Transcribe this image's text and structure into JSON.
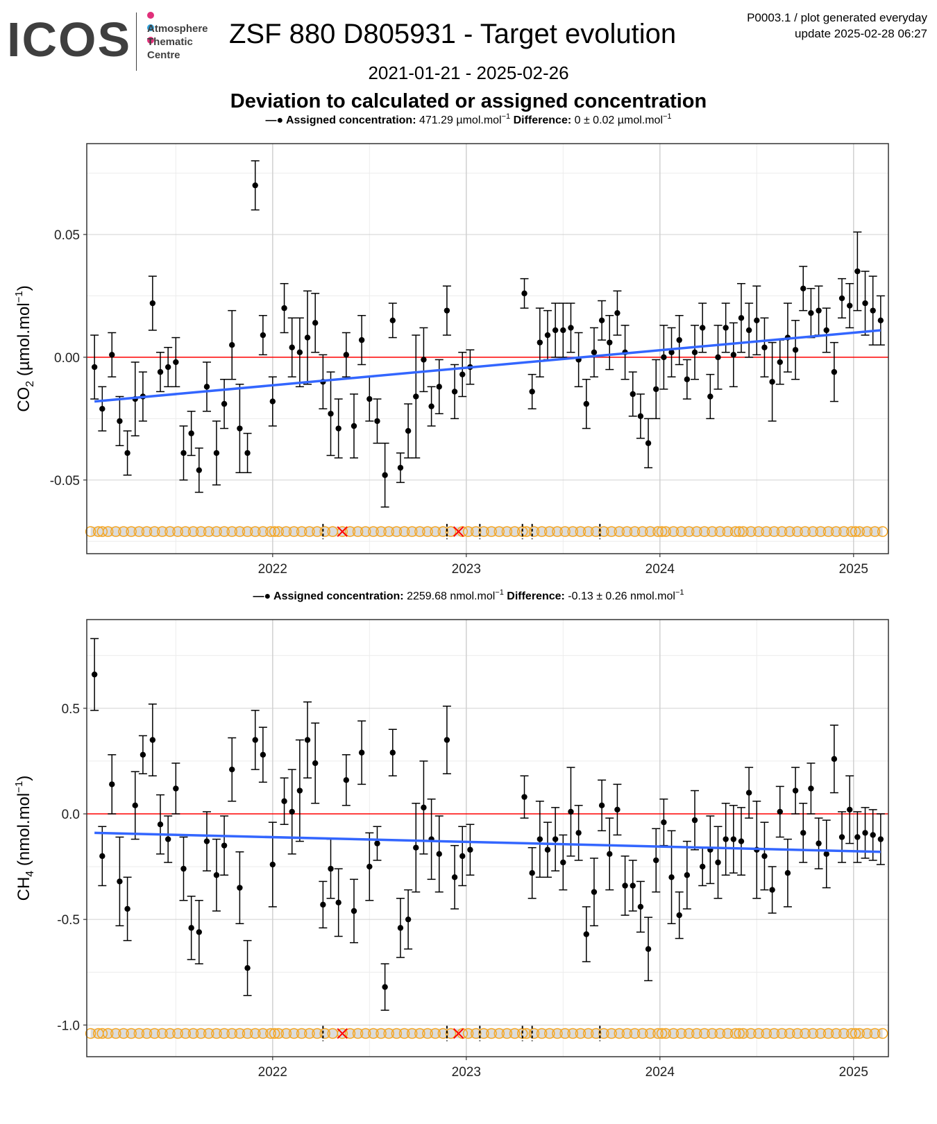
{
  "logo": {
    "wordmark": "ICOS",
    "lines": [
      "Atmosphere",
      "Thematic",
      "Centre"
    ],
    "dot_colors": [
      "#e0307a",
      "#2e9fd8",
      "#e0307a"
    ]
  },
  "header": {
    "title": "ZSF 880 D805931 - Target evolution",
    "meta_line1": "P0003.1 / plot generated everyday",
    "meta_line2": "update  2025-02-28 06:27",
    "date_range": "2021-01-21 - 2025-02-26",
    "subtitle": "Deviation to calculated or assigned concentration"
  },
  "colors": {
    "points": "#000000",
    "trend": "#3366ff",
    "zero_line": "#ff0000",
    "flag_circle": "#f5a623",
    "flag_band": "#dcdcdc",
    "rejected": "#ff0000",
    "grid_major": "#d0d0d0",
    "grid_minor": "#ececec"
  },
  "chart_data": [
    {
      "type": "scatter",
      "panel": "co2",
      "legend_label": "Assigned concentration:",
      "legend_value": "471.29 µmol.mol",
      "legend_diff_label": "Difference:",
      "legend_diff_value": "0 ± 0.02 µmol.mol",
      "unit_exp": "−1",
      "ylabel": "CO2 (µmol.mol-1)",
      "ylabel_main": "CO",
      "ylabel_sub": "2",
      "ylabel_unit": " (µmol.mol",
      "ylabel_exp": "−1",
      "ylabel_close": ")",
      "ylim": [
        -0.08,
        0.087
      ],
      "yticks": [
        -0.05,
        0.0,
        0.05
      ],
      "ytick_labels": [
        "-0.05",
        "0.00",
        "0.05"
      ],
      "xlim": [
        2021.04,
        2025.18
      ],
      "xticks": [
        2022,
        2023,
        2024,
        2025
      ],
      "xtick_labels": [
        "2022",
        "2023",
        "2024",
        "2025"
      ],
      "flag_y": -0.071,
      "trend": {
        "x": [
          2021.08,
          2025.14
        ],
        "y": [
          -0.018,
          0.011
        ]
      },
      "x": [
        2021.08,
        2021.12,
        2021.17,
        2021.21,
        2021.25,
        2021.29,
        2021.33,
        2021.38,
        2021.42,
        2021.46,
        2021.5,
        2021.54,
        2021.58,
        2021.62,
        2021.66,
        2021.71,
        2021.75,
        2021.79,
        2021.83,
        2021.87,
        2021.91,
        2021.95,
        2022.0,
        2022.06,
        2022.1,
        2022.14,
        2022.18,
        2022.22,
        2022.26,
        2022.3,
        2022.34,
        2022.38,
        2022.42,
        2022.46,
        2022.5,
        2022.54,
        2022.58,
        2022.62,
        2022.66,
        2022.7,
        2022.74,
        2022.78,
        2022.82,
        2022.86,
        2022.9,
        2022.94,
        2022.98,
        2023.02,
        2023.3,
        2023.34,
        2023.38,
        2023.42,
        2023.46,
        2023.5,
        2023.54,
        2023.58,
        2023.62,
        2023.66,
        2023.7,
        2023.74,
        2023.78,
        2023.82,
        2023.86,
        2023.9,
        2023.94,
        2023.98,
        2024.02,
        2024.06,
        2024.1,
        2024.14,
        2024.18,
        2024.22,
        2024.26,
        2024.3,
        2024.34,
        2024.38,
        2024.42,
        2024.46,
        2024.5,
        2024.54,
        2024.58,
        2024.62,
        2024.66,
        2024.7,
        2024.74,
        2024.78,
        2024.82,
        2024.86,
        2024.9,
        2024.94,
        2024.98,
        2025.02,
        2025.06,
        2025.1,
        2025.14
      ],
      "y": [
        -0.004,
        -0.021,
        0.001,
        -0.026,
        -0.039,
        -0.017,
        -0.016,
        0.022,
        -0.006,
        -0.004,
        -0.002,
        -0.039,
        -0.031,
        -0.046,
        -0.012,
        -0.039,
        -0.019,
        0.005,
        -0.029,
        -0.039,
        0.07,
        0.009,
        -0.018,
        0.02,
        0.004,
        0.002,
        0.008,
        0.014,
        -0.01,
        -0.023,
        -0.029,
        0.001,
        -0.028,
        0.007,
        -0.017,
        -0.026,
        -0.048,
        0.015,
        -0.045,
        -0.03,
        -0.016,
        -0.001,
        -0.02,
        -0.012,
        0.019,
        -0.014,
        -0.007,
        -0.004,
        0.026,
        -0.014,
        0.006,
        0.009,
        0.011,
        0.011,
        0.012,
        -0.001,
        -0.019,
        0.002,
        0.015,
        0.006,
        0.018,
        0.002,
        -0.015,
        -0.024,
        -0.035,
        -0.013,
        0.0,
        0.002,
        0.007,
        -0.009,
        0.002,
        0.012,
        -0.016,
        0.0,
        0.012,
        0.001,
        0.016,
        0.011,
        0.015,
        0.004,
        -0.01,
        -0.002,
        0.008,
        0.003,
        0.028,
        0.018,
        0.019,
        0.011,
        -0.006,
        0.024,
        0.021,
        0.035,
        0.022,
        0.019,
        0.015
      ],
      "err": [
        0.013,
        0.009,
        0.009,
        0.01,
        0.009,
        0.015,
        0.01,
        0.011,
        0.008,
        0.008,
        0.01,
        0.011,
        0.009,
        0.009,
        0.01,
        0.013,
        0.01,
        0.014,
        0.018,
        0.008,
        0.01,
        0.008,
        0.01,
        0.01,
        0.012,
        0.014,
        0.019,
        0.012,
        0.011,
        0.017,
        0.012,
        0.009,
        0.013,
        0.01,
        0.009,
        0.009,
        0.013,
        0.007,
        0.006,
        0.011,
        0.025,
        0.013,
        0.008,
        0.011,
        0.01,
        0.011,
        0.009,
        0.007,
        0.006,
        0.007,
        0.014,
        0.01,
        0.011,
        0.011,
        0.01,
        0.011,
        0.01,
        0.01,
        0.008,
        0.011,
        0.009,
        0.011,
        0.009,
        0.009,
        0.01,
        0.012,
        0.013,
        0.01,
        0.01,
        0.008,
        0.011,
        0.01,
        0.009,
        0.013,
        0.01,
        0.013,
        0.014,
        0.011,
        0.014,
        0.012,
        0.016,
        0.009,
        0.014,
        0.012,
        0.009,
        0.01,
        0.01,
        0.009,
        0.012,
        0.008,
        0.009,
        0.016,
        0.013,
        0.014,
        0.01
      ],
      "flag_circles_x": [
        2021.06,
        2021.1,
        2021.12,
        2021.15,
        2021.19,
        2021.23,
        2021.27,
        2021.31,
        2021.35,
        2021.39,
        2021.43,
        2021.47,
        2021.51,
        2021.55,
        2021.59,
        2021.63,
        2021.67,
        2021.71,
        2021.75,
        2021.79,
        2021.83,
        2021.87,
        2021.91,
        2021.95,
        2021.99,
        2022.01,
        2022.03,
        2022.07,
        2022.11,
        2022.15,
        2022.19,
        2022.23,
        2022.27,
        2022.31,
        2022.36,
        2022.4,
        2022.44,
        2022.48,
        2022.52,
        2022.56,
        2022.6,
        2022.64,
        2022.68,
        2022.72,
        2022.76,
        2022.8,
        2022.84,
        2022.88,
        2022.92,
        2022.98,
        2023.01,
        2023.05,
        2023.09,
        2023.13,
        2023.17,
        2023.21,
        2023.25,
        2023.29,
        2023.31,
        2023.35,
        2023.39,
        2023.43,
        2023.47,
        2023.51,
        2023.55,
        2023.59,
        2023.63,
        2023.67,
        2023.71,
        2023.75,
        2023.79,
        2023.83,
        2023.87,
        2023.91,
        2023.95,
        2023.99,
        2024.01,
        2024.03,
        2024.07,
        2024.11,
        2024.15,
        2024.19,
        2024.23,
        2024.27,
        2024.31,
        2024.35,
        2024.39,
        2024.41,
        2024.43,
        2024.47,
        2024.51,
        2024.55,
        2024.59,
        2024.63,
        2024.67,
        2024.71,
        2024.75,
        2024.79,
        2024.83,
        2024.87,
        2024.91,
        2024.95,
        2024.99,
        2025.01,
        2025.03,
        2025.07,
        2025.11,
        2025.15
      ],
      "flag_marks_x": [
        2022.26,
        2022.9,
        2023.07,
        2023.29,
        2023.34,
        2023.69
      ],
      "rejected_x": [
        2022.36,
        2022.96
      ]
    },
    {
      "type": "scatter",
      "panel": "ch4",
      "legend_label": "Assigned concentration:",
      "legend_value": "2259.68 nmol.mol",
      "legend_diff_label": "Difference:",
      "legend_diff_value": "-0.13 ± 0.26 nmol.mol",
      "unit_exp": "−1",
      "ylabel": "CH4 (nmol.mol-1)",
      "ylabel_main": "CH",
      "ylabel_sub": "4",
      "ylabel_unit": " (nmol.mol",
      "ylabel_exp": "−1",
      "ylabel_close": ")",
      "ylim": [
        -1.15,
        0.92
      ],
      "yticks": [
        -1.0,
        -0.5,
        0.0,
        0.5
      ],
      "ytick_labels": [
        "-1.0",
        "-0.5",
        "0.0",
        "0.5"
      ],
      "xlim": [
        2021.04,
        2025.18
      ],
      "xticks": [
        2022,
        2023,
        2024,
        2025
      ],
      "xtick_labels": [
        "2022",
        "2023",
        "2024",
        "2025"
      ],
      "flag_y": -1.04,
      "trend": {
        "x": [
          2021.08,
          2025.14
        ],
        "y": [
          -0.09,
          -0.18
        ]
      },
      "x": [
        2021.08,
        2021.12,
        2021.17,
        2021.21,
        2021.25,
        2021.29,
        2021.33,
        2021.38,
        2021.42,
        2021.46,
        2021.5,
        2021.54,
        2021.58,
        2021.62,
        2021.66,
        2021.71,
        2021.75,
        2021.79,
        2021.83,
        2021.87,
        2021.91,
        2021.95,
        2022.0,
        2022.06,
        2022.1,
        2022.14,
        2022.18,
        2022.22,
        2022.26,
        2022.3,
        2022.34,
        2022.38,
        2022.42,
        2022.46,
        2022.5,
        2022.54,
        2022.58,
        2022.62,
        2022.66,
        2022.7,
        2022.74,
        2022.78,
        2022.82,
        2022.86,
        2022.9,
        2022.94,
        2022.98,
        2023.02,
        2023.3,
        2023.34,
        2023.38,
        2023.42,
        2023.46,
        2023.5,
        2023.54,
        2023.58,
        2023.62,
        2023.66,
        2023.7,
        2023.74,
        2023.78,
        2023.82,
        2023.86,
        2023.9,
        2023.94,
        2023.98,
        2024.02,
        2024.06,
        2024.1,
        2024.14,
        2024.18,
        2024.22,
        2024.26,
        2024.3,
        2024.34,
        2024.38,
        2024.42,
        2024.46,
        2024.5,
        2024.54,
        2024.58,
        2024.62,
        2024.66,
        2024.7,
        2024.74,
        2024.78,
        2024.82,
        2024.86,
        2024.9,
        2024.94,
        2024.98,
        2025.02,
        2025.06,
        2025.1,
        2025.14
      ],
      "y": [
        0.66,
        -0.2,
        0.14,
        -0.32,
        -0.45,
        0.04,
        0.28,
        0.35,
        -0.05,
        -0.12,
        0.12,
        -0.26,
        -0.54,
        -0.56,
        -0.13,
        -0.29,
        -0.15,
        0.21,
        -0.35,
        -0.73,
        0.35,
        0.28,
        -0.24,
        0.06,
        0.01,
        0.11,
        0.35,
        0.24,
        -0.43,
        -0.26,
        -0.42,
        0.16,
        -0.46,
        0.29,
        -0.25,
        -0.14,
        -0.82,
        0.29,
        -0.54,
        -0.5,
        -0.16,
        0.03,
        -0.12,
        -0.19,
        0.35,
        -0.3,
        -0.2,
        -0.17,
        0.08,
        -0.28,
        -0.12,
        -0.17,
        -0.12,
        -0.23,
        0.01,
        -0.09,
        -0.57,
        -0.37,
        0.04,
        -0.19,
        0.02,
        -0.34,
        -0.34,
        -0.44,
        -0.64,
        -0.22,
        -0.04,
        -0.3,
        -0.48,
        -0.29,
        -0.03,
        -0.25,
        -0.17,
        -0.23,
        -0.12,
        -0.12,
        -0.13,
        0.1,
        -0.17,
        -0.2,
        -0.36,
        0.01,
        -0.28,
        0.11,
        -0.09,
        0.12,
        -0.14,
        -0.19,
        0.26,
        -0.11,
        0.02,
        -0.11,
        -0.09,
        -0.1,
        -0.12
      ],
      "err": [
        0.17,
        0.14,
        0.14,
        0.21,
        0.15,
        0.16,
        0.09,
        0.17,
        0.14,
        0.11,
        0.12,
        0.15,
        0.15,
        0.15,
        0.14,
        0.17,
        0.14,
        0.15,
        0.17,
        0.13,
        0.14,
        0.13,
        0.2,
        0.11,
        0.2,
        0.24,
        0.18,
        0.19,
        0.11,
        0.14,
        0.16,
        0.12,
        0.15,
        0.15,
        0.16,
        0.08,
        0.11,
        0.11,
        0.14,
        0.14,
        0.21,
        0.22,
        0.19,
        0.18,
        0.16,
        0.15,
        0.14,
        0.12,
        0.1,
        0.12,
        0.18,
        0.13,
        0.15,
        0.13,
        0.21,
        0.13,
        0.13,
        0.16,
        0.12,
        0.17,
        0.12,
        0.14,
        0.12,
        0.12,
        0.15,
        0.15,
        0.11,
        0.22,
        0.11,
        0.16,
        0.14,
        0.09,
        0.16,
        0.17,
        0.17,
        0.16,
        0.16,
        0.12,
        0.23,
        0.16,
        0.11,
        0.12,
        0.16,
        0.11,
        0.14,
        0.12,
        0.12,
        0.16,
        0.16,
        0.12,
        0.16,
        0.12,
        0.12,
        0.12,
        0.12
      ],
      "flag_circles_x": [
        2021.06,
        2021.1,
        2021.12,
        2021.15,
        2021.19,
        2021.23,
        2021.27,
        2021.31,
        2021.35,
        2021.39,
        2021.43,
        2021.47,
        2021.51,
        2021.55,
        2021.59,
        2021.63,
        2021.67,
        2021.71,
        2021.75,
        2021.79,
        2021.83,
        2021.87,
        2021.91,
        2021.95,
        2021.99,
        2022.01,
        2022.03,
        2022.07,
        2022.11,
        2022.15,
        2022.19,
        2022.23,
        2022.27,
        2022.31,
        2022.36,
        2022.4,
        2022.44,
        2022.48,
        2022.52,
        2022.56,
        2022.6,
        2022.64,
        2022.68,
        2022.72,
        2022.76,
        2022.8,
        2022.84,
        2022.88,
        2022.92,
        2022.98,
        2023.01,
        2023.05,
        2023.09,
        2023.13,
        2023.17,
        2023.21,
        2023.25,
        2023.29,
        2023.31,
        2023.35,
        2023.39,
        2023.43,
        2023.47,
        2023.51,
        2023.55,
        2023.59,
        2023.63,
        2023.67,
        2023.71,
        2023.75,
        2023.79,
        2023.83,
        2023.87,
        2023.91,
        2023.95,
        2023.99,
        2024.01,
        2024.03,
        2024.07,
        2024.11,
        2024.15,
        2024.19,
        2024.23,
        2024.27,
        2024.31,
        2024.35,
        2024.39,
        2024.41,
        2024.43,
        2024.47,
        2024.51,
        2024.55,
        2024.59,
        2024.63,
        2024.67,
        2024.71,
        2024.75,
        2024.79,
        2024.83,
        2024.87,
        2024.91,
        2024.95,
        2024.99,
        2025.01,
        2025.03,
        2025.07,
        2025.11,
        2025.15
      ],
      "flag_marks_x": [
        2022.26,
        2022.9,
        2023.07,
        2023.29,
        2023.34,
        2023.69
      ],
      "rejected_x": [
        2022.36,
        2022.96
      ]
    }
  ]
}
